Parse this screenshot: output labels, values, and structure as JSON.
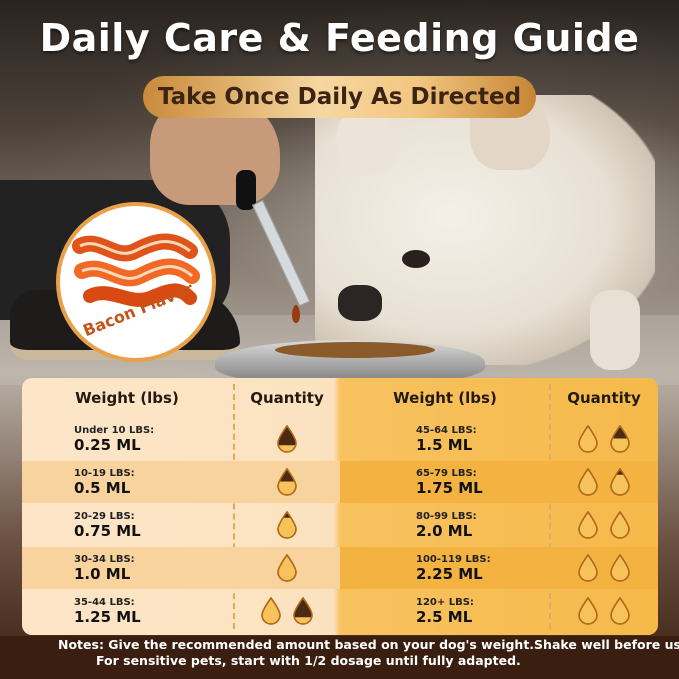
{
  "title": "Daily Care & Feeding Guide",
  "subtitle": "Take Once Daily As Directed",
  "badge": {
    "label": "Bacon Flavor"
  },
  "table": {
    "headers": {
      "weight_left": "Weight (lbs)",
      "quantity_left": "Quantity",
      "weight_right": "Weight (lbs)",
      "quantity_right": "Quantity"
    },
    "left_rows": [
      {
        "weight": "Under 10 LBS:",
        "dose": "0.25 ML",
        "fill": 0.25
      },
      {
        "weight": "10-19 LBS:",
        "dose": "0.5 ML",
        "fill": 0.5
      },
      {
        "weight": "20-29 LBS:",
        "dose": "0.75 ML",
        "fill": 0.75
      },
      {
        "weight": "30-34 LBS:",
        "dose": "1.0 ML",
        "fill": 1.0
      },
      {
        "weight": "35-44 LBS:",
        "dose": "1.25 ML",
        "fill": 1.25
      }
    ],
    "right_rows": [
      {
        "weight": "45-64 LBS:",
        "dose": "1.5 ML",
        "fill": 1.5
      },
      {
        "weight": "65-79 LBS:",
        "dose": "1.75 ML",
        "fill": 1.75
      },
      {
        "weight": "80-99 LBS:",
        "dose": "2.0 ML",
        "fill": 2.0
      },
      {
        "weight": "100-119 LBS:",
        "dose": "2.25 ML",
        "fill": 2.25
      },
      {
        "weight": "120+ LBS:",
        "dose": "2.5 ML",
        "fill": 2.5
      }
    ]
  },
  "notes": {
    "line1": "Notes: Give the recommended amount based on your dog's weight.Shake well before use.",
    "line2": "For sensitive pets, start with 1/2 dosage until fully adapted."
  },
  "colors": {
    "drop_dark": "#4a2a12",
    "drop_light": "#f7c25a",
    "badge_accent": "#c5541a"
  }
}
